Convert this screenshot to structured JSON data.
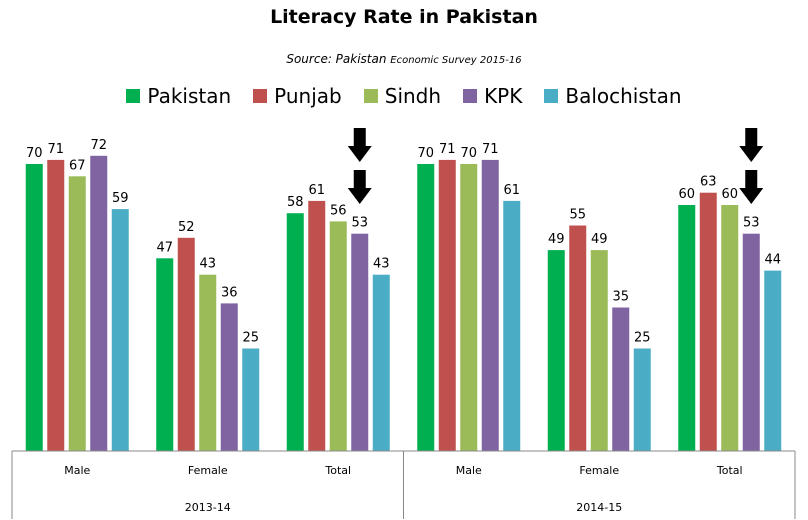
{
  "chart_data": {
    "type": "bar",
    "title": "Literacy Rate in Pakistan",
    "subtitle_prefix": "Source: Pakistan",
    "subtitle_suffix": "Economic Survey 2015-16",
    "xlabel": "",
    "ylabel": "",
    "ylim": [
      0,
      100
    ],
    "grid": false,
    "legend_position": "top",
    "series": [
      {
        "name": "Pakistan",
        "color": "#00b050",
        "values": [
          70,
          47,
          58,
          70,
          49,
          60
        ]
      },
      {
        "name": "Punjab",
        "color": "#c0504d",
        "values": [
          71,
          52,
          61,
          71,
          55,
          63
        ]
      },
      {
        "name": "Sindh",
        "color": "#9bbb59",
        "values": [
          67,
          43,
          56,
          70,
          49,
          60
        ]
      },
      {
        "name": "KPK",
        "color": "#8064a2",
        "values": [
          72,
          36,
          53,
          71,
          35,
          53
        ]
      },
      {
        "name": "Balochistan",
        "color": "#4bacc6",
        "values": [
          59,
          25,
          43,
          61,
          25,
          44
        ]
      }
    ],
    "categories": [
      "Male",
      "Female",
      "Total",
      "Male",
      "Female",
      "Total"
    ],
    "groups": [
      {
        "label": "2013-14",
        "categories": [
          0,
          1,
          2
        ]
      },
      {
        "label": "2014-15",
        "categories": [
          3,
          4,
          5
        ]
      }
    ],
    "annotations": [
      {
        "type": "down-arrows",
        "count": 2,
        "category_index": 2
      },
      {
        "type": "down-arrows",
        "count": 2,
        "category_index": 5
      }
    ]
  }
}
